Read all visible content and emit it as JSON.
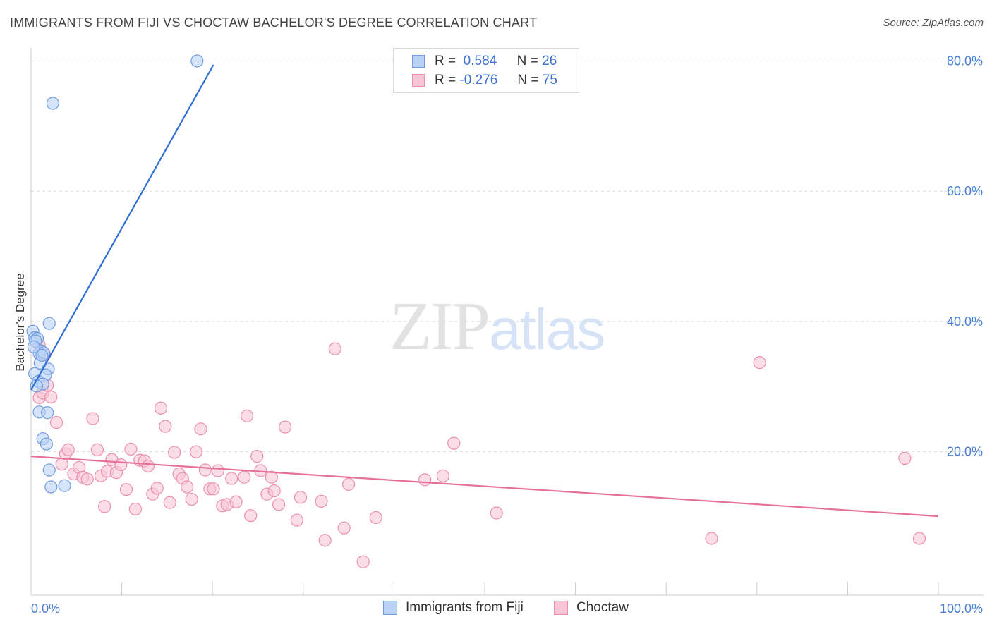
{
  "title": "IMMIGRANTS FROM FIJI VS CHOCTAW BACHELOR'S DEGREE CORRELATION CHART",
  "source": "Source: ZipAtlas.com",
  "watermark": {
    "zip": "ZIP",
    "atlas": "atlas"
  },
  "legend": {
    "rows": [
      {
        "r_label": "R =",
        "r_value": "0.584",
        "n_label": "N =",
        "n_value": "26"
      },
      {
        "r_label": "R =",
        "r_value": "-0.276",
        "n_label": "N =",
        "n_value": "75"
      }
    ]
  },
  "bottom_legend": {
    "fiji": "Immigrants from Fiji",
    "choctaw": "Choctaw"
  },
  "colors": {
    "fiji_fill": "#b9d2f5",
    "fiji_stroke": "#6f9be0",
    "fiji_line": "#2f6fd3",
    "choctaw_fill": "#f8c6d6",
    "choctaw_stroke": "#ec8fae",
    "choctaw_line": "#e7709a",
    "tick_text": "#4a7fd4"
  },
  "chart_data": {
    "type": "scatter",
    "title": "IMMIGRANTS FROM FIJI VS CHOCTAW BACHELOR'S DEGREE CORRELATION CHART",
    "xlabel": "",
    "ylabel": "Bachelor's Degree",
    "xlim": [
      0,
      100
    ],
    "ylim": [
      -0.5,
      82
    ],
    "x_tick_labels": [
      "0.0%",
      "100.0%"
    ],
    "y_ticks": [
      20,
      40,
      60,
      80
    ],
    "y_tick_labels": [
      "20.0%",
      "40.0%",
      "60.0%",
      "80.0%"
    ],
    "grid": true,
    "series": [
      {
        "name": "Immigrants from Fiji",
        "R": 0.584,
        "N": 26,
        "trend": {
          "x0": 0,
          "y0": 29.5,
          "x1": 20.1,
          "y1": 79.4
        },
        "points": [
          {
            "x": 18.3,
            "y": 80.0
          },
          {
            "x": 2.4,
            "y": 73.5
          },
          {
            "x": 2.0,
            "y": 39.7
          },
          {
            "x": 0.2,
            "y": 38.5
          },
          {
            "x": 0.4,
            "y": 37.5
          },
          {
            "x": 0.7,
            "y": 37.4
          },
          {
            "x": 1.1,
            "y": 35.5
          },
          {
            "x": 0.9,
            "y": 35.1
          },
          {
            "x": 1.4,
            "y": 35.2
          },
          {
            "x": 1.0,
            "y": 33.6
          },
          {
            "x": 1.9,
            "y": 32.7
          },
          {
            "x": 0.4,
            "y": 32.0
          },
          {
            "x": 1.6,
            "y": 31.8
          },
          {
            "x": 0.8,
            "y": 30.8
          },
          {
            "x": 1.3,
            "y": 30.4
          },
          {
            "x": 0.6,
            "y": 30.1
          },
          {
            "x": 0.9,
            "y": 26.1
          },
          {
            "x": 1.8,
            "y": 26.0
          },
          {
            "x": 1.3,
            "y": 22.0
          },
          {
            "x": 1.7,
            "y": 21.2
          },
          {
            "x": 2.0,
            "y": 17.2
          },
          {
            "x": 2.2,
            "y": 14.6
          },
          {
            "x": 3.7,
            "y": 14.8
          },
          {
            "x": 0.5,
            "y": 37.0
          },
          {
            "x": 1.2,
            "y": 34.8
          },
          {
            "x": 0.3,
            "y": 36.1
          }
        ]
      },
      {
        "name": "Choctaw",
        "R": -0.276,
        "N": 75,
        "trend": {
          "x0": 0,
          "y0": 19.3,
          "x1": 100,
          "y1": 10.1
        },
        "points": [
          {
            "x": 0.9,
            "y": 36.4
          },
          {
            "x": 0.9,
            "y": 28.3
          },
          {
            "x": 1.3,
            "y": 29.0
          },
          {
            "x": 1.8,
            "y": 30.2
          },
          {
            "x": 2.2,
            "y": 28.4
          },
          {
            "x": 2.8,
            "y": 24.5
          },
          {
            "x": 3.4,
            "y": 18.1
          },
          {
            "x": 3.8,
            "y": 19.7
          },
          {
            "x": 4.1,
            "y": 20.3
          },
          {
            "x": 4.7,
            "y": 16.6
          },
          {
            "x": 5.3,
            "y": 17.6
          },
          {
            "x": 5.7,
            "y": 16.1
          },
          {
            "x": 6.2,
            "y": 15.8
          },
          {
            "x": 6.8,
            "y": 25.1
          },
          {
            "x": 7.3,
            "y": 20.3
          },
          {
            "x": 7.7,
            "y": 16.3
          },
          {
            "x": 8.1,
            "y": 11.6
          },
          {
            "x": 8.4,
            "y": 17.0
          },
          {
            "x": 8.9,
            "y": 18.8
          },
          {
            "x": 9.4,
            "y": 16.8
          },
          {
            "x": 9.9,
            "y": 18.0
          },
          {
            "x": 10.5,
            "y": 14.2
          },
          {
            "x": 11.0,
            "y": 20.4
          },
          {
            "x": 11.5,
            "y": 11.2
          },
          {
            "x": 12.0,
            "y": 18.7
          },
          {
            "x": 12.5,
            "y": 18.6
          },
          {
            "x": 12.9,
            "y": 17.8
          },
          {
            "x": 13.4,
            "y": 13.5
          },
          {
            "x": 13.9,
            "y": 14.4
          },
          {
            "x": 14.3,
            "y": 26.7
          },
          {
            "x": 14.8,
            "y": 23.9
          },
          {
            "x": 15.3,
            "y": 12.2
          },
          {
            "x": 15.8,
            "y": 19.9
          },
          {
            "x": 16.3,
            "y": 16.6
          },
          {
            "x": 16.7,
            "y": 15.9
          },
          {
            "x": 17.2,
            "y": 14.6
          },
          {
            "x": 17.7,
            "y": 12.7
          },
          {
            "x": 18.2,
            "y": 20.0
          },
          {
            "x": 18.7,
            "y": 23.5
          },
          {
            "x": 19.2,
            "y": 17.2
          },
          {
            "x": 19.7,
            "y": 14.3
          },
          {
            "x": 20.1,
            "y": 14.3
          },
          {
            "x": 20.6,
            "y": 17.1
          },
          {
            "x": 21.1,
            "y": 11.7
          },
          {
            "x": 21.6,
            "y": 11.9
          },
          {
            "x": 22.1,
            "y": 15.9
          },
          {
            "x": 22.6,
            "y": 12.3
          },
          {
            "x": 23.5,
            "y": 16.1
          },
          {
            "x": 23.8,
            "y": 25.5
          },
          {
            "x": 24.2,
            "y": 10.2
          },
          {
            "x": 24.9,
            "y": 19.3
          },
          {
            "x": 25.3,
            "y": 17.1
          },
          {
            "x": 26.0,
            "y": 13.5
          },
          {
            "x": 26.5,
            "y": 16.1
          },
          {
            "x": 26.8,
            "y": 14.0
          },
          {
            "x": 27.3,
            "y": 11.9
          },
          {
            "x": 28.0,
            "y": 23.8
          },
          {
            "x": 29.3,
            "y": 9.5
          },
          {
            "x": 29.7,
            "y": 13.0
          },
          {
            "x": 32.0,
            "y": 12.4
          },
          {
            "x": 32.4,
            "y": 6.4
          },
          {
            "x": 33.5,
            "y": 35.8
          },
          {
            "x": 34.5,
            "y": 8.3
          },
          {
            "x": 35.0,
            "y": 15.0
          },
          {
            "x": 36.6,
            "y": 3.1
          },
          {
            "x": 38.0,
            "y": 9.9
          },
          {
            "x": 43.4,
            "y": 15.7
          },
          {
            "x": 45.4,
            "y": 16.3
          },
          {
            "x": 46.6,
            "y": 21.3
          },
          {
            "x": 51.3,
            "y": 10.6
          },
          {
            "x": 75.0,
            "y": 6.7
          },
          {
            "x": 80.3,
            "y": 33.7
          },
          {
            "x": 96.3,
            "y": 19.0
          },
          {
            "x": 97.9,
            "y": 6.7
          },
          {
            "x": 1.5,
            "y": 34.9
          }
        ]
      }
    ]
  }
}
